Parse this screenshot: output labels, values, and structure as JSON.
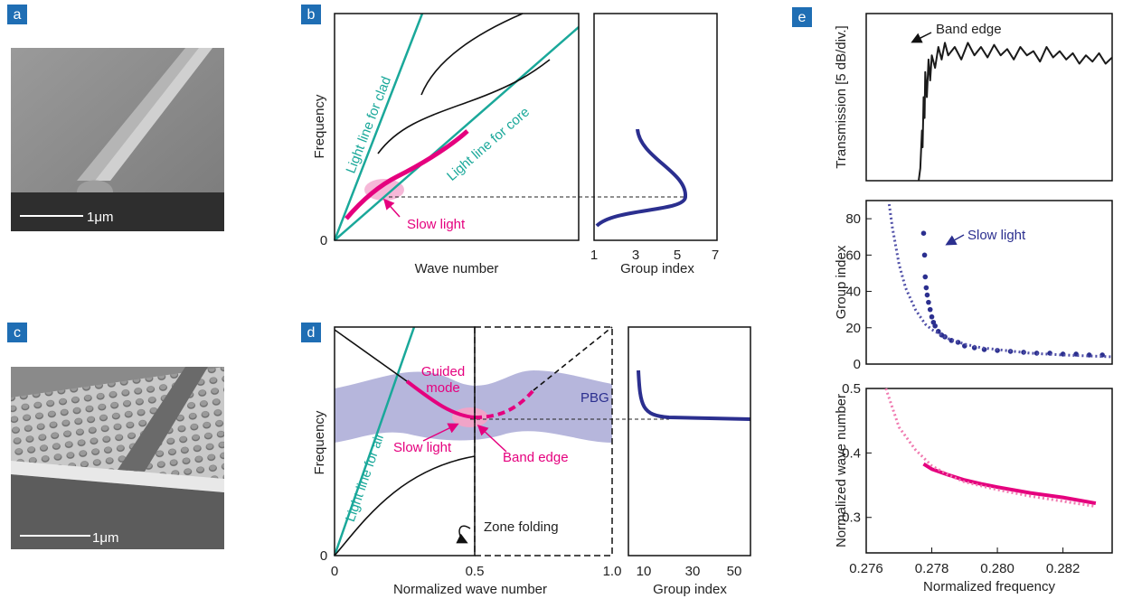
{
  "figure": {
    "panel_labels": [
      "a",
      "b",
      "c",
      "d",
      "e"
    ],
    "a": {
      "scale_bar": "1μm"
    },
    "b": {
      "y_label": "Frequency",
      "y_origin": 0,
      "x_label": "Wave number",
      "clad_line": "Light line for clad",
      "core_line": "Light line for core",
      "slow_light": "Slow light",
      "group_index_label": "Group index",
      "group_index_ticks": [
        1,
        3,
        5,
        7
      ]
    },
    "c": {
      "scale_bar": "1μm"
    },
    "d": {
      "y_label": "Frequency",
      "y_origin": 0,
      "x_label": "Normalized wave number",
      "x_ticks": [
        "0",
        "0.5",
        "1.0"
      ],
      "guided_mode": [
        "Guided",
        "mode"
      ],
      "pbg": "PBG",
      "slow_light": "Slow light",
      "band_edge": "Band edge",
      "air_line": "Light line for air",
      "zone_folding": "Zone folding",
      "group_index_label": "Group index",
      "group_index_ticks": [
        10,
        30,
        50
      ]
    }
  },
  "chart_data": [
    {
      "type": "line",
      "ylabel": "Transmission [5 dB/div.]",
      "annotation": "Band edge",
      "xlim": [
        0.276,
        0.2835
      ],
      "ylim": [
        0,
        4
      ],
      "series": [
        {
          "color": "#1a1a1a",
          "x": [
            0.2776,
            0.27765,
            0.2777,
            0.27772,
            0.27775,
            0.27778,
            0.2778,
            0.27785,
            0.2779,
            0.27795,
            0.278,
            0.2781,
            0.2782,
            0.2783,
            0.2784,
            0.2785,
            0.2787,
            0.2789,
            0.2791,
            0.2793,
            0.2795,
            0.2797,
            0.2799,
            0.2801,
            0.2803,
            0.2805,
            0.2807,
            0.2809,
            0.2811,
            0.2813,
            0.2815,
            0.2817,
            0.2819,
            0.2821,
            0.2823,
            0.2825,
            0.2827,
            0.2829,
            0.2831,
            0.2833,
            0.2835
          ],
          "values": [
            0,
            0.3,
            1.2,
            0.8,
            2.0,
            1.5,
            2.6,
            2.0,
            2.9,
            2.4,
            3.0,
            2.7,
            3.2,
            2.9,
            3.3,
            3.0,
            3.2,
            2.9,
            3.3,
            3.0,
            3.2,
            2.95,
            3.25,
            3.0,
            3.15,
            2.9,
            3.2,
            3.0,
            3.1,
            2.85,
            3.2,
            2.95,
            3.1,
            2.9,
            3.05,
            2.8,
            3.0,
            2.85,
            3.05,
            2.8,
            2.95
          ]
        }
      ]
    },
    {
      "type": "scatter",
      "ylabel": "Group index",
      "annotation": "Slow light",
      "xlim": [
        0.276,
        0.2835
      ],
      "ylim": [
        0,
        90
      ],
      "yticks": [
        0,
        20,
        40,
        60,
        80
      ],
      "series": [
        {
          "style": "dots",
          "color": "#2b2f8f",
          "x": [
            0.27775,
            0.27778,
            0.2778,
            0.27783,
            0.27786,
            0.2779,
            0.27795,
            0.278,
            0.27805,
            0.2781,
            0.2782,
            0.2783,
            0.2784,
            0.2786,
            0.2788,
            0.279,
            0.2793,
            0.2796,
            0.28,
            0.2804,
            0.2808,
            0.2812,
            0.2816,
            0.282,
            0.2824,
            0.2828,
            0.2832
          ],
          "values": [
            72,
            60,
            48,
            42,
            38,
            34,
            30,
            26,
            23,
            21,
            18,
            16,
            15,
            13,
            12,
            10,
            9,
            8,
            7.5,
            7,
            6.5,
            6,
            6,
            5.5,
            5.5,
            5,
            5
          ]
        },
        {
          "style": "dotted",
          "color": "#5050a8",
          "x": [
            0.2767,
            0.2768,
            0.277,
            0.2772,
            0.2775,
            0.2778,
            0.278,
            0.2785,
            0.279,
            0.2795,
            0.28,
            0.281,
            0.282,
            0.2835
          ],
          "values": [
            88,
            75,
            55,
            42,
            30,
            22,
            19,
            14,
            11,
            9,
            8,
            6,
            5,
            4
          ]
        }
      ]
    },
    {
      "type": "line",
      "ylabel": "Normalized wave number",
      "xlabel": "Normalized frequency",
      "xlim": [
        0.276,
        0.2835
      ],
      "ylim": [
        0.245,
        0.5
      ],
      "yticks": [
        0.3,
        0.4,
        0.5
      ],
      "xticks": [
        0.276,
        0.278,
        {
          "value": 0.28,
          "label": "0.280"
        },
        0.282
      ],
      "series": [
        {
          "style": "solid",
          "color": "#e5007e",
          "x": [
            0.27775,
            0.278,
            0.2785,
            0.279,
            0.2795,
            0.28,
            0.281,
            0.282,
            0.283
          ],
          "values": [
            0.383,
            0.375,
            0.366,
            0.358,
            0.352,
            0.347,
            0.338,
            0.331,
            0.322
          ]
        },
        {
          "style": "dotted",
          "color": "#f07ab0",
          "x": [
            0.2766,
            0.277,
            0.2775,
            0.278,
            0.2785,
            0.279,
            0.28,
            0.281,
            0.282,
            0.283
          ],
          "values": [
            0.5,
            0.44,
            0.405,
            0.38,
            0.366,
            0.355,
            0.343,
            0.333,
            0.325,
            0.317
          ]
        }
      ]
    }
  ]
}
